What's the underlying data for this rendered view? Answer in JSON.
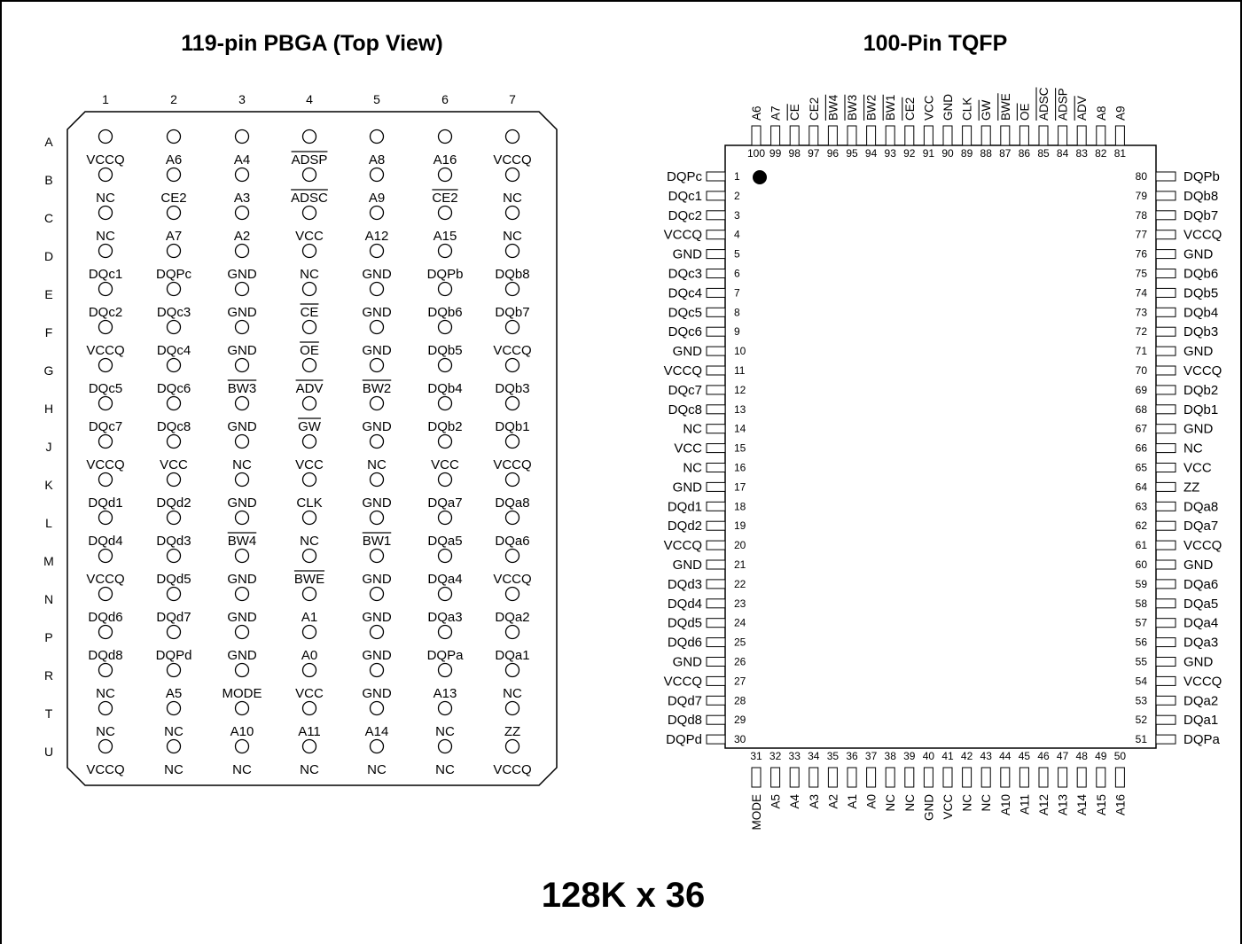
{
  "titles": {
    "bga": "119-pin PBGA (Top View)",
    "tqfp": "100-Pin TQFP",
    "org": "128K x 36"
  },
  "bga": {
    "columns": [
      "1",
      "2",
      "3",
      "4",
      "5",
      "6",
      "7"
    ],
    "rows": [
      {
        "row": "A",
        "pins": [
          {
            "s": "VCCQ"
          },
          {
            "s": "A6"
          },
          {
            "s": "A4"
          },
          {
            "s": "ADSP",
            "bar": true
          },
          {
            "s": "A8"
          },
          {
            "s": "A16"
          },
          {
            "s": "VCCQ"
          }
        ]
      },
      {
        "row": "B",
        "pins": [
          {
            "s": "NC"
          },
          {
            "s": "CE2"
          },
          {
            "s": "A3"
          },
          {
            "s": "ADSC",
            "bar": true
          },
          {
            "s": "A9"
          },
          {
            "s": "CE2",
            "bar": true
          },
          {
            "s": "NC"
          }
        ]
      },
      {
        "row": "C",
        "pins": [
          {
            "s": "NC"
          },
          {
            "s": "A7"
          },
          {
            "s": "A2"
          },
          {
            "s": "VCC"
          },
          {
            "s": "A12"
          },
          {
            "s": "A15"
          },
          {
            "s": "NC"
          }
        ]
      },
      {
        "row": "D",
        "pins": [
          {
            "s": "DQc1"
          },
          {
            "s": "DQPc"
          },
          {
            "s": "GND"
          },
          {
            "s": "NC"
          },
          {
            "s": "GND"
          },
          {
            "s": "DQPb"
          },
          {
            "s": "DQb8"
          }
        ]
      },
      {
        "row": "E",
        "pins": [
          {
            "s": "DQc2"
          },
          {
            "s": "DQc3"
          },
          {
            "s": "GND"
          },
          {
            "s": "CE",
            "bar": true
          },
          {
            "s": "GND"
          },
          {
            "s": "DQb6"
          },
          {
            "s": "DQb7"
          }
        ]
      },
      {
        "row": "F",
        "pins": [
          {
            "s": "VCCQ"
          },
          {
            "s": "DQc4"
          },
          {
            "s": "GND"
          },
          {
            "s": "OE",
            "bar": true
          },
          {
            "s": "GND"
          },
          {
            "s": "DQb5"
          },
          {
            "s": "VCCQ"
          }
        ]
      },
      {
        "row": "G",
        "pins": [
          {
            "s": "DQc5"
          },
          {
            "s": "DQc6"
          },
          {
            "s": "BW3",
            "bar": true
          },
          {
            "s": "ADV",
            "bar": true
          },
          {
            "s": "BW2",
            "bar": true
          },
          {
            "s": "DQb4"
          },
          {
            "s": "DQb3"
          }
        ]
      },
      {
        "row": "H",
        "pins": [
          {
            "s": "DQc7"
          },
          {
            "s": "DQc8"
          },
          {
            "s": "GND"
          },
          {
            "s": "GW",
            "bar": true
          },
          {
            "s": "GND"
          },
          {
            "s": "DQb2"
          },
          {
            "s": "DQb1"
          }
        ]
      },
      {
        "row": "J",
        "pins": [
          {
            "s": "VCCQ"
          },
          {
            "s": "VCC"
          },
          {
            "s": "NC"
          },
          {
            "s": "VCC"
          },
          {
            "s": "NC"
          },
          {
            "s": "VCC"
          },
          {
            "s": "VCCQ"
          }
        ]
      },
      {
        "row": "K",
        "pins": [
          {
            "s": "DQd1"
          },
          {
            "s": "DQd2"
          },
          {
            "s": "GND"
          },
          {
            "s": "CLK"
          },
          {
            "s": "GND"
          },
          {
            "s": "DQa7"
          },
          {
            "s": "DQa8"
          }
        ]
      },
      {
        "row": "L",
        "pins": [
          {
            "s": "DQd4"
          },
          {
            "s": "DQd3"
          },
          {
            "s": "BW4",
            "bar": true
          },
          {
            "s": "NC"
          },
          {
            "s": "BW1",
            "bar": true
          },
          {
            "s": "DQa5"
          },
          {
            "s": "DQa6"
          }
        ]
      },
      {
        "row": "M",
        "pins": [
          {
            "s": "VCCQ"
          },
          {
            "s": "DQd5"
          },
          {
            "s": "GND"
          },
          {
            "s": "BWE",
            "bar": true
          },
          {
            "s": "GND"
          },
          {
            "s": "DQa4"
          },
          {
            "s": "VCCQ"
          }
        ]
      },
      {
        "row": "N",
        "pins": [
          {
            "s": "DQd6"
          },
          {
            "s": "DQd7"
          },
          {
            "s": "GND"
          },
          {
            "s": "A1"
          },
          {
            "s": "GND"
          },
          {
            "s": "DQa3"
          },
          {
            "s": "DQa2"
          }
        ]
      },
      {
        "row": "P",
        "pins": [
          {
            "s": "DQd8"
          },
          {
            "s": "DQPd"
          },
          {
            "s": "GND"
          },
          {
            "s": "A0"
          },
          {
            "s": "GND"
          },
          {
            "s": "DQPa"
          },
          {
            "s": "DQa1"
          }
        ]
      },
      {
        "row": "R",
        "pins": [
          {
            "s": "NC"
          },
          {
            "s": "A5"
          },
          {
            "s": "MODE"
          },
          {
            "s": "VCC"
          },
          {
            "s": "GND"
          },
          {
            "s": "A13"
          },
          {
            "s": "NC"
          }
        ]
      },
      {
        "row": "T",
        "pins": [
          {
            "s": "NC"
          },
          {
            "s": "NC"
          },
          {
            "s": "A10"
          },
          {
            "s": "A11"
          },
          {
            "s": "A14"
          },
          {
            "s": "NC"
          },
          {
            "s": "ZZ"
          }
        ]
      },
      {
        "row": "U",
        "pins": [
          {
            "s": "VCCQ"
          },
          {
            "s": "NC"
          },
          {
            "s": "NC"
          },
          {
            "s": "NC"
          },
          {
            "s": "NC"
          },
          {
            "s": "NC"
          },
          {
            "s": "VCCQ"
          }
        ]
      }
    ]
  },
  "tqfp": {
    "left": [
      {
        "n": "1",
        "s": "DQPc"
      },
      {
        "n": "2",
        "s": "DQc1"
      },
      {
        "n": "3",
        "s": "DQc2"
      },
      {
        "n": "4",
        "s": "VCCQ"
      },
      {
        "n": "5",
        "s": "GND"
      },
      {
        "n": "6",
        "s": "DQc3"
      },
      {
        "n": "7",
        "s": "DQc4"
      },
      {
        "n": "8",
        "s": "DQc5"
      },
      {
        "n": "9",
        "s": "DQc6"
      },
      {
        "n": "10",
        "s": "GND"
      },
      {
        "n": "11",
        "s": "VCCQ"
      },
      {
        "n": "12",
        "s": "DQc7"
      },
      {
        "n": "13",
        "s": "DQc8"
      },
      {
        "n": "14",
        "s": "NC"
      },
      {
        "n": "15",
        "s": "VCC"
      },
      {
        "n": "16",
        "s": "NC"
      },
      {
        "n": "17",
        "s": "GND"
      },
      {
        "n": "18",
        "s": "DQd1"
      },
      {
        "n": "19",
        "s": "DQd2"
      },
      {
        "n": "20",
        "s": "VCCQ"
      },
      {
        "n": "21",
        "s": "GND"
      },
      {
        "n": "22",
        "s": "DQd3"
      },
      {
        "n": "23",
        "s": "DQd4"
      },
      {
        "n": "24",
        "s": "DQd5"
      },
      {
        "n": "25",
        "s": "DQd6"
      },
      {
        "n": "26",
        "s": "GND"
      },
      {
        "n": "27",
        "s": "VCCQ"
      },
      {
        "n": "28",
        "s": "DQd7"
      },
      {
        "n": "29",
        "s": "DQd8"
      },
      {
        "n": "30",
        "s": "DQPd"
      }
    ],
    "right": [
      {
        "n": "80",
        "s": "DQPb"
      },
      {
        "n": "79",
        "s": "DQb8"
      },
      {
        "n": "78",
        "s": "DQb7"
      },
      {
        "n": "77",
        "s": "VCCQ"
      },
      {
        "n": "76",
        "s": "GND"
      },
      {
        "n": "75",
        "s": "DQb6"
      },
      {
        "n": "74",
        "s": "DQb5"
      },
      {
        "n": "73",
        "s": "DQb4"
      },
      {
        "n": "72",
        "s": "DQb3"
      },
      {
        "n": "71",
        "s": "GND"
      },
      {
        "n": "70",
        "s": "VCCQ"
      },
      {
        "n": "69",
        "s": "DQb2"
      },
      {
        "n": "68",
        "s": "DQb1"
      },
      {
        "n": "67",
        "s": "GND"
      },
      {
        "n": "66",
        "s": "NC"
      },
      {
        "n": "65",
        "s": "VCC"
      },
      {
        "n": "64",
        "s": "ZZ"
      },
      {
        "n": "63",
        "s": "DQa8"
      },
      {
        "n": "62",
        "s": "DQa7"
      },
      {
        "n": "61",
        "s": "VCCQ"
      },
      {
        "n": "60",
        "s": "GND"
      },
      {
        "n": "59",
        "s": "DQa6"
      },
      {
        "n": "58",
        "s": "DQa5"
      },
      {
        "n": "57",
        "s": "DQa4"
      },
      {
        "n": "56",
        "s": "DQa3"
      },
      {
        "n": "55",
        "s": "GND"
      },
      {
        "n": "54",
        "s": "VCCQ"
      },
      {
        "n": "53",
        "s": "DQa2"
      },
      {
        "n": "52",
        "s": "DQa1"
      },
      {
        "n": "51",
        "s": "DQPa"
      }
    ],
    "top": [
      {
        "n": "100",
        "s": "A6"
      },
      {
        "n": "99",
        "s": "A7"
      },
      {
        "n": "98",
        "s": "CE",
        "bar": true
      },
      {
        "n": "97",
        "s": "CE2"
      },
      {
        "n": "96",
        "s": "BW4",
        "bar": true
      },
      {
        "n": "95",
        "s": "BW3",
        "bar": true
      },
      {
        "n": "94",
        "s": "BW2",
        "bar": true
      },
      {
        "n": "93",
        "s": "BW1",
        "bar": true
      },
      {
        "n": "92",
        "s": "CE2",
        "bar": true
      },
      {
        "n": "91",
        "s": "VCC"
      },
      {
        "n": "90",
        "s": "GND"
      },
      {
        "n": "89",
        "s": "CLK"
      },
      {
        "n": "88",
        "s": "GW",
        "bar": true
      },
      {
        "n": "87",
        "s": "BWE",
        "bar": true
      },
      {
        "n": "86",
        "s": "OE",
        "bar": true
      },
      {
        "n": "85",
        "s": "ADSC",
        "bar": true
      },
      {
        "n": "84",
        "s": "ADSP",
        "bar": true
      },
      {
        "n": "83",
        "s": "ADV",
        "bar": true
      },
      {
        "n": "82",
        "s": "A8"
      },
      {
        "n": "81",
        "s": "A9"
      }
    ],
    "bottom": [
      {
        "n": "31",
        "s": "MODE"
      },
      {
        "n": "32",
        "s": "A5"
      },
      {
        "n": "33",
        "s": "A4"
      },
      {
        "n": "34",
        "s": "A3"
      },
      {
        "n": "35",
        "s": "A2"
      },
      {
        "n": "36",
        "s": "A1"
      },
      {
        "n": "37",
        "s": "A0"
      },
      {
        "n": "38",
        "s": "NC"
      },
      {
        "n": "39",
        "s": "NC"
      },
      {
        "n": "40",
        "s": "GND"
      },
      {
        "n": "41",
        "s": "VCC"
      },
      {
        "n": "42",
        "s": "NC"
      },
      {
        "n": "43",
        "s": "NC"
      },
      {
        "n": "44",
        "s": "A10"
      },
      {
        "n": "45",
        "s": "A11"
      },
      {
        "n": "46",
        "s": "A12"
      },
      {
        "n": "47",
        "s": "A13"
      },
      {
        "n": "48",
        "s": "A14"
      },
      {
        "n": "49",
        "s": "A15"
      },
      {
        "n": "50",
        "s": "A16"
      }
    ]
  }
}
